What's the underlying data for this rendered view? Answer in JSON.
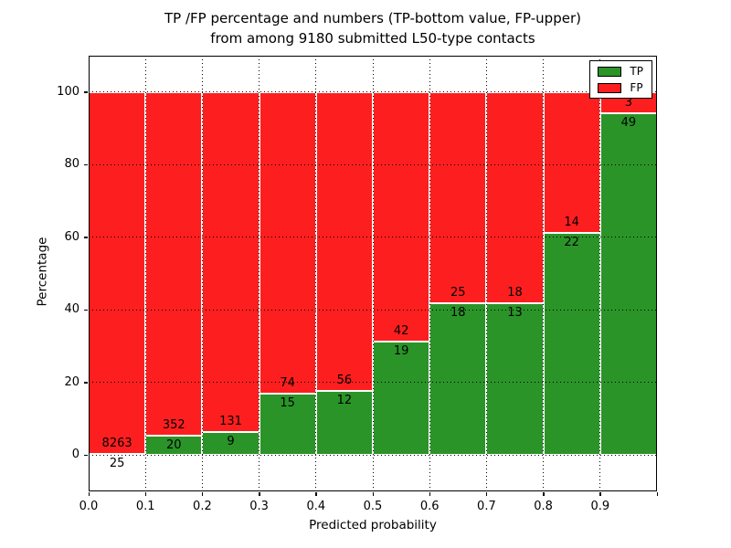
{
  "title": {
    "line1": "TP /FP percentage and numbers (TP-bottom value, FP-upper)",
    "line2": "from among 9180 submitted L50-type contacts"
  },
  "axes": {
    "xlabel": "Predicted probability",
    "ylabel": "Percentage"
  },
  "legend": [
    {
      "label": "TP",
      "color": "#2a9428"
    },
    {
      "label": "FP",
      "color": "#fd1f1f"
    }
  ],
  "chart_data": {
    "type": "bar",
    "stacked": true,
    "title": "TP /FP percentage and numbers (TP-bottom value, FP-upper) from among 9180 submitted L50-type contacts",
    "xlabel": "Predicted probability",
    "ylabel": "Percentage",
    "total_contacts": 9180,
    "bin_edges": [
      0.0,
      0.1,
      0.2,
      0.3,
      0.4,
      0.5,
      0.6,
      0.7,
      0.8,
      0.9,
      1.0
    ],
    "series": [
      {
        "name": "TP",
        "position": "bottom",
        "color": "#2a9428",
        "counts": [
          25,
          20,
          9,
          15,
          12,
          19,
          18,
          13,
          22,
          49
        ]
      },
      {
        "name": "FP",
        "position": "top",
        "color": "#fd1f1f",
        "counts": [
          8263,
          352,
          131,
          74,
          56,
          42,
          25,
          18,
          14,
          3
        ]
      }
    ],
    "tp_percentages": [
      0.3,
      5.38,
      6.43,
      16.85,
      17.65,
      31.15,
      41.86,
      41.94,
      61.11,
      94.23
    ],
    "xlim": [
      0,
      1
    ],
    "ylim": [
      -10,
      110
    ],
    "x_tick_values": [
      0.0,
      0.1,
      0.2,
      0.3,
      0.4,
      0.5,
      0.6,
      0.7,
      0.8,
      0.9
    ],
    "x_tick_labels": [
      "0.0",
      "0.1",
      "0.2",
      "0.3",
      "0.4",
      "0.5",
      "0.6",
      "0.7",
      "0.8",
      "0.9"
    ],
    "y_tick_values": [
      0,
      20,
      40,
      60,
      80,
      100
    ],
    "y_tick_labels": [
      "0",
      "20",
      "40",
      "60",
      "80",
      "100"
    ],
    "grid": "dotted",
    "bar_edge_color": "#ffffff",
    "legend_position": "upper right"
  }
}
